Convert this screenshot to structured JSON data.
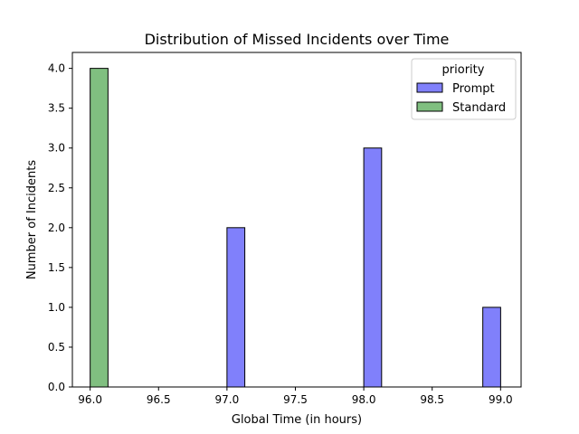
{
  "chart_data": {
    "type": "bar",
    "title": "Distribution of Missed Incidents over Time",
    "xlabel": "Global Time (in hours)",
    "ylabel": "Number of Incidents",
    "xlim": [
      95.87,
      99.15
    ],
    "ylim": [
      0,
      4.2
    ],
    "bin_width": 0.1304,
    "xticks": [
      "96.0",
      "96.5",
      "97.0",
      "97.5",
      "98.0",
      "98.5",
      "99.0"
    ],
    "yticks": [
      "0.0",
      "0.5",
      "1.0",
      "1.5",
      "2.0",
      "2.5",
      "3.0",
      "3.5",
      "4.0"
    ],
    "grid": false,
    "legend": {
      "title": "priority",
      "placement": "top-right"
    },
    "series": [
      {
        "name": "Prompt",
        "color": "#8080fb",
        "bars": [
          {
            "x": 97.0,
            "value": 2
          },
          {
            "x": 98.0,
            "value": 3
          },
          {
            "x": 98.87,
            "value": 1
          }
        ]
      },
      {
        "name": "Standard",
        "color": "#80bf80",
        "bars": [
          {
            "x": 96.0,
            "value": 4
          }
        ]
      }
    ]
  }
}
